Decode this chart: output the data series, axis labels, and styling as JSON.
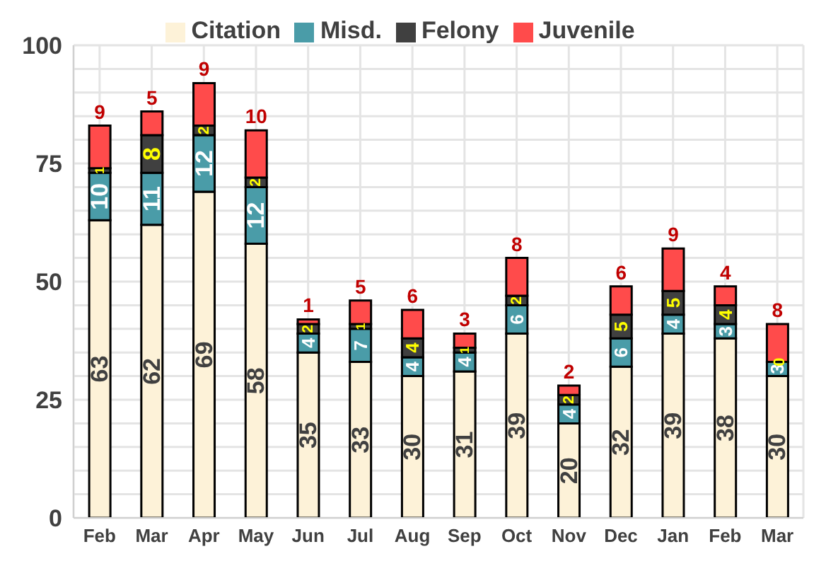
{
  "chart_data": {
    "type": "bar",
    "stacked": true,
    "categories": [
      "Feb",
      "Mar",
      "Apr",
      "May",
      "Jun",
      "Jul",
      "Aug",
      "Sep",
      "Oct",
      "Nov",
      "Dec",
      "Jan",
      "Feb",
      "Mar"
    ],
    "series": [
      {
        "name": "Citation",
        "color": "#fdf2d8",
        "values": [
          63,
          62,
          69,
          58,
          35,
          33,
          30,
          31,
          39,
          20,
          32,
          39,
          38,
          30
        ]
      },
      {
        "name": "Misd.",
        "color": "#4a9ca8",
        "values": [
          10,
          11,
          12,
          12,
          4,
          7,
          4,
          4,
          6,
          4,
          6,
          4,
          3,
          3
        ]
      },
      {
        "name": "Felony",
        "color": "#404040",
        "values": [
          1,
          8,
          2,
          2,
          2,
          1,
          4,
          1,
          2,
          2,
          5,
          5,
          4,
          0
        ]
      },
      {
        "name": "Juvenile",
        "color": "#ff4b4b",
        "values": [
          9,
          5,
          9,
          10,
          1,
          5,
          6,
          3,
          8,
          2,
          6,
          9,
          4,
          8
        ]
      }
    ],
    "ylim": [
      0,
      100
    ],
    "yticks": [
      0,
      {
        "value": 5,
        "label": null
      },
      {
        "value": 10,
        "label": null
      },
      {
        "value": 15,
        "label": null
      },
      {
        "value": 20,
        "label": null
      },
      25,
      {
        "value": 30,
        "label": null
      },
      {
        "value": 35,
        "label": null
      },
      {
        "value": 40,
        "label": null
      },
      {
        "value": 45,
        "label": null
      },
      50,
      {
        "value": 55,
        "label": null
      },
      {
        "value": 60,
        "label": null
      },
      {
        "value": 65,
        "label": null
      },
      {
        "value": 70,
        "label": null
      },
      75,
      {
        "value": 80,
        "label": null
      },
      {
        "value": 85,
        "label": null
      },
      {
        "value": 90,
        "label": null
      },
      {
        "value": 95,
        "label": null
      },
      100
    ],
    "grid": true,
    "legend": "top",
    "data_labels": true
  }
}
